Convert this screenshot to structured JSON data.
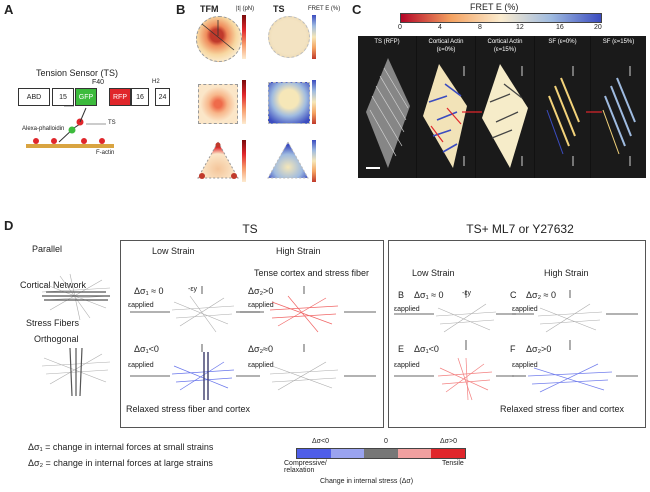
{
  "panels": {
    "a": "A",
    "b": "B",
    "c": "C",
    "d": "D"
  },
  "panelA": {
    "title": "Tension Sensor (TS)",
    "f40": "F40",
    "segments": [
      "ABD",
      "15",
      "GFP",
      "RFP",
      "16",
      "24"
    ],
    "h2": "H2",
    "alexa": "Alexa-phalloidin",
    "ts": "TS",
    "factin": "F-actin"
  },
  "panelB": {
    "tfm": "TFM",
    "ts": "TS",
    "tfm_unit": "|t| (pN)",
    "ts_unit": "FRET E (%)",
    "tfm_ticks": [
      "300",
      "200",
      "100",
      "0"
    ],
    "ts_ticks": [
      "20",
      "15",
      "10"
    ]
  },
  "panelC": {
    "title": "FRET E (%)",
    "ticks": [
      "0",
      "4",
      "8",
      "12",
      "16",
      "20"
    ],
    "cells": [
      {
        "label1": "TS (RFP)",
        "label2": ""
      },
      {
        "label1": "Cortical Actin",
        "label2": "(ε=0%)"
      },
      {
        "label1": "Cortical Actin",
        "label2": "(ε=15%)"
      },
      {
        "label1": "SF (ε=0%)",
        "label2": ""
      },
      {
        "label1": "SF (ε=15%)",
        "label2": ""
      }
    ]
  },
  "panelD": {
    "parallel": "Parallel",
    "cortical": "Cortical Network",
    "stress": "Stress Fibers",
    "orthogonal": "Orthogonal",
    "ts_title": "TS",
    "ts_ml7_title": "TS+ ML7 or Y27632",
    "low_strain": "Low Strain",
    "high_strain": "High Strain",
    "tense": "Tense cortex and stress fiber",
    "relaxed": "Relaxed stress fiber and cortex",
    "eq1": "Δσ₁ ≈ 0",
    "eq2": "Δσ₂>0",
    "eq3": "Δσ₁<0",
    "eq4": "Δσ₂≈0",
    "eq5": "Δσ₂ ≈ 0",
    "eq6": "Δσ₂>0",
    "ey": "-εy",
    "eapplied": "εapplied",
    "letters": [
      "B",
      "C",
      "E",
      "F"
    ],
    "def1": "Δσ₁ = change in internal forces at small strains",
    "def2": "Δσ₂ = change in internal forces at large strains",
    "legend_neg": "Δσ<0",
    "legend_zero": "0",
    "legend_pos": "Δσ>0",
    "compressive": "Compressive/ relaxation",
    "tensile": "Tensile",
    "change": "Change in internal stress (Δσ)"
  },
  "colors": {
    "gfp": "#3dbb3d",
    "rfp": "#e0262b",
    "blue": "#4f5ee8",
    "red": "#ee4b4b",
    "gray": "#777777"
  }
}
